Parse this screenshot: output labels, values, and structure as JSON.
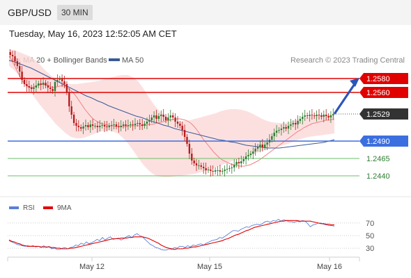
{
  "header": {
    "pair": "GBP/USD",
    "timeframe": "30 MIN"
  },
  "timestamp": "Tuesday, May 16, 2023 12:52:05 AM CET",
  "credit": "Research © 2023 Trading Central",
  "colors": {
    "ma20": "#f08080",
    "ma50": "#3b5998",
    "bollinger_fill": "#fbdada",
    "candle_up": "#2e7d32",
    "candle_down": "#b71c1c",
    "resistance": "#e00000",
    "pivot": "#3b6fe0",
    "support": "#6abf69",
    "current_tag": "#333333",
    "rsi": "#5b7fd6",
    "rsi_ma": "#e00000",
    "arrow": "#2a56b8"
  },
  "chart_data": [
    {
      "type": "candlestick",
      "title": "GBP/USD",
      "legend": [
        "MA 20 + Bollinger Bands",
        "MA 50"
      ],
      "x_ticks": [
        "May 12",
        "May 15",
        "May 16"
      ],
      "y_range": [
        1.2425,
        1.2595
      ],
      "current_price": "1.2529",
      "levels": [
        {
          "label": "1.2580",
          "value": 1.258,
          "kind": "resistance"
        },
        {
          "label": "1.2560",
          "value": 1.256,
          "kind": "resistance"
        },
        {
          "label": "1.2490",
          "value": 1.249,
          "kind": "pivot"
        },
        {
          "label": "1.2465",
          "value": 1.2465,
          "kind": "support"
        },
        {
          "label": "1.2440",
          "value": 1.244,
          "kind": "support"
        }
      ],
      "projected_direction": "up",
      "close": [
        1.2614,
        1.2612,
        1.2605,
        1.2598,
        1.259,
        1.2578,
        1.2572,
        1.2569,
        1.2567,
        1.2565,
        1.2567,
        1.257,
        1.2573,
        1.2571,
        1.2574,
        1.257,
        1.2567,
        1.2565,
        1.2562,
        1.2575,
        1.2578,
        1.258,
        1.2576,
        1.2572,
        1.256,
        1.254,
        1.2528,
        1.2516,
        1.2512,
        1.251,
        1.2508,
        1.2511,
        1.2513,
        1.251,
        1.2514,
        1.2512,
        1.2512,
        1.251,
        1.2512,
        1.2513,
        1.2511,
        1.251,
        1.2512,
        1.2513,
        1.2514,
        1.2511,
        1.251,
        1.2512,
        1.2514,
        1.2512,
        1.2513,
        1.2514,
        1.2513,
        1.2515,
        1.2516,
        1.2514,
        1.2512,
        1.2515,
        1.2518,
        1.252,
        1.2524,
        1.2527,
        1.2522,
        1.2526,
        1.2528,
        1.2525,
        1.252,
        1.2524,
        1.2527,
        1.2524,
        1.2518,
        1.2515,
        1.2512,
        1.2506,
        1.2496,
        1.2486,
        1.2472,
        1.2462,
        1.2458,
        1.2455,
        1.2455,
        1.2453,
        1.2451,
        1.2448,
        1.2449,
        1.2447,
        1.2446,
        1.2448,
        1.2448,
        1.2446,
        1.2447,
        1.2449,
        1.245,
        1.2451,
        1.2452,
        1.2456,
        1.246,
        1.2458,
        1.2461,
        1.2464,
        1.2468,
        1.247,
        1.2472,
        1.2475,
        1.2479,
        1.2482,
        1.2485,
        1.2481,
        1.2485,
        1.2488,
        1.2492,
        1.2497,
        1.2502,
        1.2505,
        1.2506,
        1.2508,
        1.251,
        1.2508,
        1.2512,
        1.2514,
        1.2516,
        1.2514,
        1.2519,
        1.2522,
        1.2525,
        1.2527,
        1.2526,
        1.2528,
        1.2527,
        1.2526,
        1.2528,
        1.2527,
        1.2525,
        1.2528,
        1.2526,
        1.2524,
        1.2527,
        1.2529
      ],
      "ma20": [
        1.2612,
        1.2606,
        1.2598,
        1.259,
        1.2582,
        1.2575,
        1.2571,
        1.2568,
        1.2567,
        1.2568,
        1.257,
        1.2571,
        1.2572,
        1.2571,
        1.257,
        1.2568,
        1.2567,
        1.2568,
        1.2569,
        1.257,
        1.2569,
        1.2566,
        1.2563,
        1.2559,
        1.2554,
        1.2548,
        1.2542,
        1.2536,
        1.2531,
        1.2526,
        1.2522,
        1.2519,
        1.2517,
        1.2515,
        1.2514,
        1.2513,
        1.2512,
        1.2512,
        1.2511,
        1.2511,
        1.2511,
        1.2511,
        1.2511,
        1.2512,
        1.2512,
        1.2512,
        1.2512,
        1.2512,
        1.2513,
        1.2513,
        1.2514,
        1.2514,
        1.2515,
        1.2516,
        1.2517,
        1.2518,
        1.2519,
        1.252,
        1.2521,
        1.2521,
        1.2522,
        1.2522,
        1.2521,
        1.252,
        1.2518,
        1.2515,
        1.2511,
        1.2506,
        1.25,
        1.2494,
        1.2489,
        1.2484,
        1.2479,
        1.2474,
        1.247,
        1.2466,
        1.2463,
        1.2461,
        1.2459,
        1.2457,
        1.2456,
        1.2455,
        1.2454,
        1.2454,
        1.2454,
        1.2455,
        1.2456,
        1.2458,
        1.246,
        1.2462,
        1.2465,
        1.2468,
        1.2471,
        1.2474,
        1.2477,
        1.248,
        1.2483,
        1.2486,
        1.2489,
        1.2492,
        1.2495,
        1.2498,
        1.2501,
        1.2504,
        1.2506,
        1.2509,
        1.2511,
        1.2513,
        1.2515,
        1.2516,
        1.2517,
        1.2518,
        1.2519,
        1.252,
        1.252,
        1.2521,
        1.2521
      ],
      "ma50": [
        1.2606,
        1.2604,
        1.2601,
        1.2598,
        1.2595,
        1.2591,
        1.2587,
        1.2583,
        1.2579,
        1.2575,
        1.2571,
        1.2567,
        1.2563,
        1.2559,
        1.2555,
        1.2552,
        1.2548,
        1.2545,
        1.2541,
        1.2538,
        1.2535,
        1.2532,
        1.2529,
        1.2526,
        1.2524,
        1.2521,
        1.2518,
        1.2516,
        1.2513,
        1.2511,
        1.2508,
        1.2506,
        1.2504,
        1.2502,
        1.25,
        1.2498,
        1.2496,
        1.2494,
        1.2492,
        1.2491,
        1.2489,
        1.2488,
        1.2486,
        1.2484,
        1.2483,
        1.2482,
        1.2481,
        1.248,
        1.248,
        1.248,
        1.2481,
        1.2482,
        1.2483,
        1.2484,
        1.2485,
        1.2486,
        1.2487,
        1.2488,
        1.249,
        1.2492
      ],
      "bb_upper": [
        1.2622,
        1.2621,
        1.2618,
        1.2615,
        1.2612,
        1.2607,
        1.26,
        1.2592,
        1.2585,
        1.258,
        1.2576,
        1.2573,
        1.2572,
        1.2572,
        1.2573,
        1.2574,
        1.2575,
        1.2576,
        1.2578,
        1.258,
        1.2582,
        1.2584,
        1.2585,
        1.2585,
        1.2582,
        1.2576,
        1.2566,
        1.2554,
        1.2543,
        1.2534,
        1.2527,
        1.2522,
        1.2519,
        1.2518,
        1.2519,
        1.252,
        1.2522,
        1.2524,
        1.2526,
        1.2528,
        1.253,
        1.2533,
        1.2535,
        1.2536,
        1.2536,
        1.2535,
        1.2533,
        1.253,
        1.2526,
        1.2522,
        1.2519,
        1.2517,
        1.2516,
        1.2516,
        1.2517,
        1.2519,
        1.2521,
        1.2523,
        1.2525,
        1.2527,
        1.2528,
        1.2528,
        1.2528,
        1.2528
      ],
      "bb_lower": [
        1.2598,
        1.2592,
        1.2584,
        1.2573,
        1.2562,
        1.2552,
        1.2542,
        1.2533,
        1.2524,
        1.2515,
        1.2508,
        1.2501,
        1.2496,
        1.2494,
        1.2494,
        1.2496,
        1.2499,
        1.2502,
        1.2504,
        1.2505,
        1.2504,
        1.2501,
        1.2495,
        1.2487,
        1.2477,
        1.2466,
        1.2456,
        1.2448,
        1.2442,
        1.2439,
        1.2438,
        1.2438,
        1.2439,
        1.244,
        1.2441,
        1.2442,
        1.2443,
        1.2445,
        1.2447,
        1.2449,
        1.2452,
        1.2455,
        1.2458,
        1.2461,
        1.2463,
        1.2465,
        1.2467,
        1.247,
        1.2473,
        1.2476,
        1.2478,
        1.248,
        1.2482,
        1.2484,
        1.2486,
        1.2489,
        1.2492,
        1.2494,
        1.2496,
        1.2497,
        1.2498,
        1.2499,
        1.25,
        1.2501
      ]
    },
    {
      "type": "line",
      "title": "RSI",
      "series": [
        {
          "name": "RSI",
          "values": [
            42,
            40,
            38,
            36,
            35,
            34,
            33,
            34,
            33,
            34,
            32,
            33,
            31,
            34,
            31,
            33,
            29,
            30,
            28,
            28,
            30,
            31,
            29,
            31,
            32,
            35,
            34,
            38,
            36,
            40,
            37,
            39,
            41,
            44,
            42,
            47,
            43,
            46,
            48,
            44,
            45,
            46,
            43,
            45,
            48,
            50,
            47,
            51,
            53,
            50,
            48,
            44,
            40,
            36,
            34,
            31,
            30,
            28,
            27,
            27,
            29,
            28,
            31,
            30,
            33,
            33,
            31,
            34,
            32,
            35,
            34,
            36,
            37,
            35,
            38,
            40,
            42,
            43,
            44,
            47,
            46,
            49,
            52,
            55,
            58,
            58,
            57,
            60,
            62,
            64,
            63,
            66,
            67,
            68,
            67,
            69,
            72,
            73,
            71,
            74,
            73,
            76,
            73,
            75,
            74,
            72,
            72,
            71,
            73,
            72,
            74,
            73,
            69,
            64,
            67,
            68,
            70,
            70,
            68,
            67,
            66,
            66,
            65
          ]
        },
        {
          "name": "9MA",
          "values": [
            43,
            41,
            40,
            38,
            37,
            35,
            34,
            33,
            33,
            33,
            33,
            33,
            32,
            32,
            32,
            32,
            31,
            31,
            30,
            30,
            29,
            29,
            29,
            30,
            30,
            31,
            32,
            33,
            34,
            35,
            36,
            37,
            38,
            39,
            40,
            41,
            42,
            43,
            44,
            45,
            45,
            45,
            46,
            46,
            46,
            47,
            47,
            48,
            48,
            48,
            48,
            47,
            46,
            44,
            42,
            40,
            38,
            35,
            33,
            31,
            30,
            29,
            28,
            29,
            29,
            29,
            30,
            30,
            31,
            32,
            32,
            33,
            34,
            35,
            36,
            37,
            38,
            39,
            40,
            41,
            42,
            44,
            45,
            47,
            49,
            51,
            52,
            54,
            56,
            58,
            59,
            61,
            63,
            64,
            65,
            66,
            67,
            68,
            69,
            70,
            71,
            72,
            73,
            73,
            74,
            74,
            74,
            74,
            74,
            73,
            73,
            73,
            73,
            73,
            72,
            71,
            70,
            69,
            69,
            68,
            68,
            67,
            67
          ]
        }
      ],
      "y_ticks": [
        "70",
        "50",
        "30"
      ],
      "ylim": [
        18,
        82
      ]
    }
  ]
}
